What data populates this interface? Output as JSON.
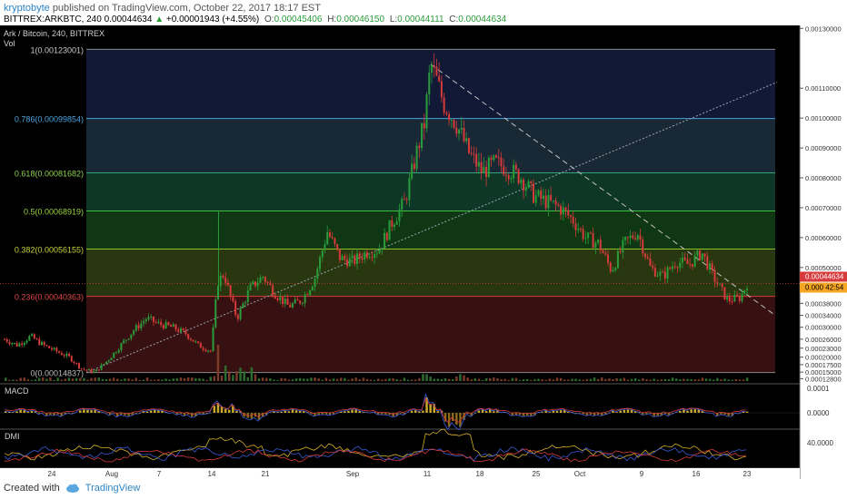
{
  "header": {
    "author": "kryptobyte",
    "published": "published on TradingView.com, October 22, 2017 18:17 EST",
    "symbol": "BITTREX:ARKBTC, 240",
    "last": "0.00044634",
    "change": "+0.00001943 (+4.55%)",
    "o_label": "O:",
    "o": "0.00045406",
    "h_label": "H:",
    "h": "0.00046150",
    "l_label": "L:",
    "l": "0.00044111",
    "c_label": "C:",
    "c": "0.00044634"
  },
  "footer": {
    "created": "Created with",
    "brand": "TradingView"
  },
  "colors": {
    "up": "#2a9d3a",
    "down": "#d63a3a",
    "bg": "#000000",
    "grid": "#1a1a1a"
  },
  "chart_data": {
    "type": "candlestick",
    "title": "Ark / Bitcoin, 240, BITTREX",
    "volume_label": "Vol",
    "price_axis_ticks": [
      "0.00130000",
      "0.00110000",
      "0.00100000",
      "0.00090000",
      "0.00080000",
      "0.00070000",
      "0.00060000",
      "0.00050000",
      "0.00038000",
      "0.00034000",
      "0.00030000",
      "0.00026000",
      "0.00023000",
      "0.00020000",
      "0.00017500",
      "0.00015000",
      "0.00012800"
    ],
    "current_price": "0.00044634",
    "countdown": "0.000 42:54",
    "x_ticks": [
      "24",
      "Aug",
      "7",
      "14",
      "21",
      "Sep",
      "11",
      "18",
      "25",
      "Oct",
      "9",
      "16",
      "23"
    ],
    "fib_levels": [
      {
        "label": "1(0.00123001)",
        "value": 0.00123001
      },
      {
        "label": "0.786(0.00099854)",
        "value": 0.00099854
      },
      {
        "label": "0.618(0.00081682)",
        "value": 0.00081682
      },
      {
        "label": "0.5(0.00068919)",
        "value": 0.00068919
      },
      {
        "label": "0.382(0.00056155)",
        "value": 0.00056155
      },
      {
        "label": "0.236(0.00040363)",
        "value": 0.00040363
      },
      {
        "label": "0(0.00014837)",
        "value": 0.00014837
      }
    ],
    "price_path": [
      [
        0,
        0.00026
      ],
      [
        2,
        0.00024
      ],
      [
        4,
        0.00027
      ],
      [
        6,
        0.00024
      ],
      [
        8,
        0.00022
      ],
      [
        10,
        0.0002
      ],
      [
        12,
        0.00016
      ],
      [
        14,
        0.00015
      ],
      [
        16,
        0.00019
      ],
      [
        18,
        0.00024
      ],
      [
        20,
        0.00029
      ],
      [
        22,
        0.00033
      ],
      [
        24,
        0.00031
      ],
      [
        26,
        0.0003
      ],
      [
        28,
        0.00028
      ],
      [
        30,
        0.00024
      ],
      [
        32,
        0.00022
      ],
      [
        33,
        0.00045
      ],
      [
        34,
        0.00048
      ],
      [
        35,
        0.0004
      ],
      [
        36,
        0.00033
      ],
      [
        38,
        0.00043
      ],
      [
        40,
        0.00047
      ],
      [
        42,
        0.00041
      ],
      [
        44,
        0.00037
      ],
      [
        46,
        0.00039
      ],
      [
        48,
        0.00046
      ],
      [
        50,
        0.00062
      ],
      [
        52,
        0.00053
      ],
      [
        54,
        0.00052
      ],
      [
        56,
        0.00055
      ],
      [
        58,
        0.00056
      ],
      [
        60,
        0.00065
      ],
      [
        62,
        0.00072
      ],
      [
        64,
        0.0009
      ],
      [
        65,
        0.00098
      ],
      [
        66,
        0.00118
      ],
      [
        67,
        0.00112
      ],
      [
        68,
        0.00105
      ],
      [
        70,
        0.00098
      ],
      [
        72,
        0.00088
      ],
      [
        74,
        0.00082
      ],
      [
        76,
        0.00085
      ],
      [
        78,
        0.00083
      ],
      [
        80,
        0.0008
      ],
      [
        82,
        0.00074
      ],
      [
        84,
        0.00072
      ],
      [
        86,
        0.0007
      ],
      [
        88,
        0.00066
      ],
      [
        90,
        0.0006
      ],
      [
        92,
        0.00058
      ],
      [
        94,
        0.00049
      ],
      [
        96,
        0.00058
      ],
      [
        98,
        0.00062
      ],
      [
        100,
        0.0005
      ],
      [
        102,
        0.00047
      ],
      [
        104,
        0.00052
      ],
      [
        106,
        0.00051
      ],
      [
        108,
        0.00055
      ],
      [
        110,
        0.00046
      ],
      [
        112,
        0.00039
      ],
      [
        114,
        0.0004
      ],
      [
        115,
        0.00044634
      ]
    ],
    "indicators": [
      {
        "name": "MACD",
        "axis_ticks": [
          "0.0001",
          "0.0000"
        ]
      },
      {
        "name": "DMI",
        "axis_ticks": [
          "40.0000"
        ]
      }
    ]
  }
}
